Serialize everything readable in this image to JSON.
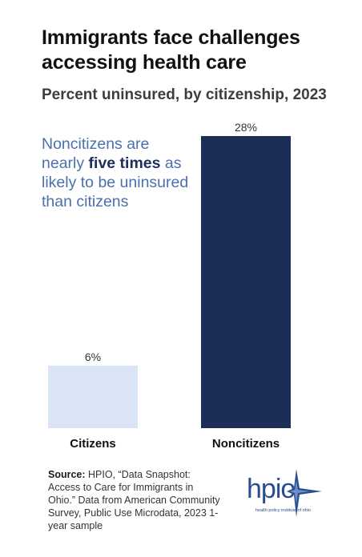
{
  "chart_data": {
    "type": "bar",
    "title": "Immigrants face challenges accessing health care",
    "subtitle": "Percent uninsured, by citizenship, 2023",
    "categories": [
      "Citizens",
      "Noncitizens"
    ],
    "values": [
      6,
      28
    ],
    "data_labels": [
      "6%",
      "28%"
    ],
    "colors": [
      "#d9e5f5",
      "#1c2d57"
    ],
    "ylim": [
      0,
      28
    ],
    "grid": false,
    "legend": "none"
  },
  "callout": {
    "pre": "Noncitizens are nearly ",
    "bold": "five times",
    "post": " as likely to be uninsured than citizens"
  },
  "source": {
    "label": "Source:",
    "text": " HPIO, “Data Snapshot: Access to Care for Immigrants in Ohio.” Data from American Community Survey, Public Use Microdata, 2023 1-year sample"
  },
  "logo": {
    "wordmark": "hpio",
    "tagline": "health policy institute of ohio",
    "icon": "star-burst-icon"
  }
}
